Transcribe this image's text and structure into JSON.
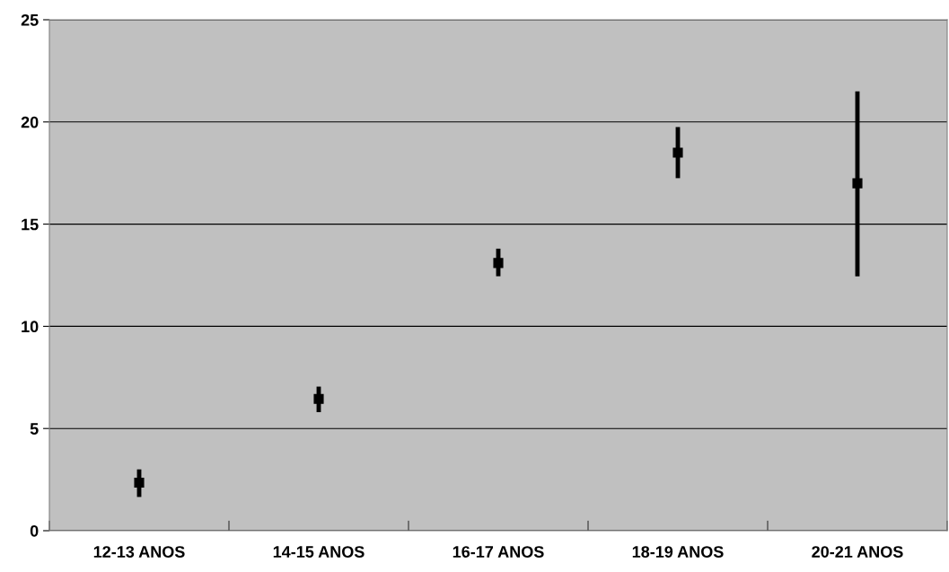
{
  "chart_data": {
    "type": "scatter",
    "categories": [
      "12-13 ANOS",
      "14-15 ANOS",
      "16-17 ANOS",
      "18-19 ANOS",
      "20-21 ANOS"
    ],
    "values": [
      2.35,
      6.45,
      13.1,
      18.5,
      17.0
    ],
    "errors": [
      [
        1.65,
        3.0
      ],
      [
        5.8,
        7.05
      ],
      [
        12.45,
        13.8
      ],
      [
        17.25,
        19.75
      ],
      [
        12.45,
        21.5
      ]
    ],
    "color": "#000000",
    "marker": "square",
    "ylim": [
      0,
      25
    ],
    "yticks": [
      0,
      5,
      10,
      15,
      20,
      25
    ],
    "grid": "y"
  }
}
